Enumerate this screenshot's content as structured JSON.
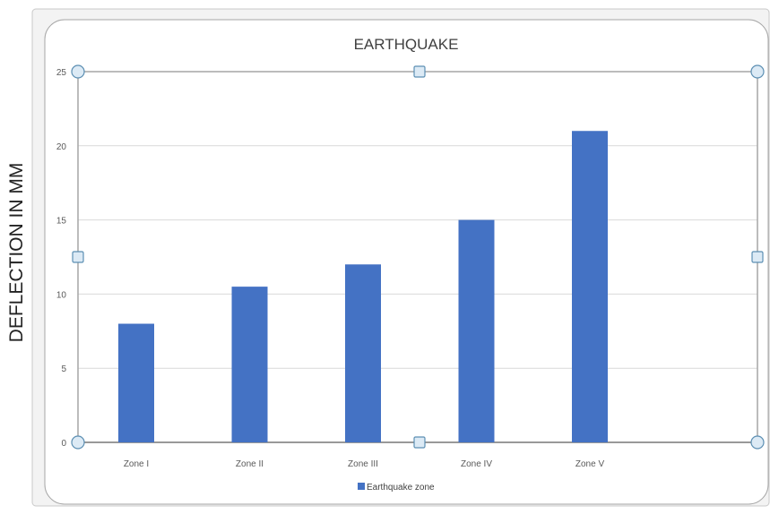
{
  "outer_ylabel": "DEFLECTION IN MM",
  "chart_data": {
    "type": "bar",
    "title": "EARTHQUAKE",
    "categories": [
      "Zone I",
      "Zone II",
      "Zone III",
      "Zone IV",
      "Zone V"
    ],
    "series": [
      {
        "name": "Earthquake zone",
        "values": [
          8,
          10.5,
          12,
          15,
          21
        ]
      }
    ],
    "xlabel": "",
    "ylabel": "",
    "ylim": [
      0,
      25
    ],
    "yticks": [
      "0",
      "5",
      "10",
      "15",
      "20",
      "25"
    ],
    "grid": true,
    "legend_position": "bottom"
  },
  "colors": {
    "bar": "#4472C4",
    "grid": "#D9D9D9",
    "axis": "#868686",
    "frame": "#A6A6A6",
    "handle_fill": "#DCEAF5",
    "handle_stroke": "#5C8FB3"
  },
  "selection_handles": true
}
